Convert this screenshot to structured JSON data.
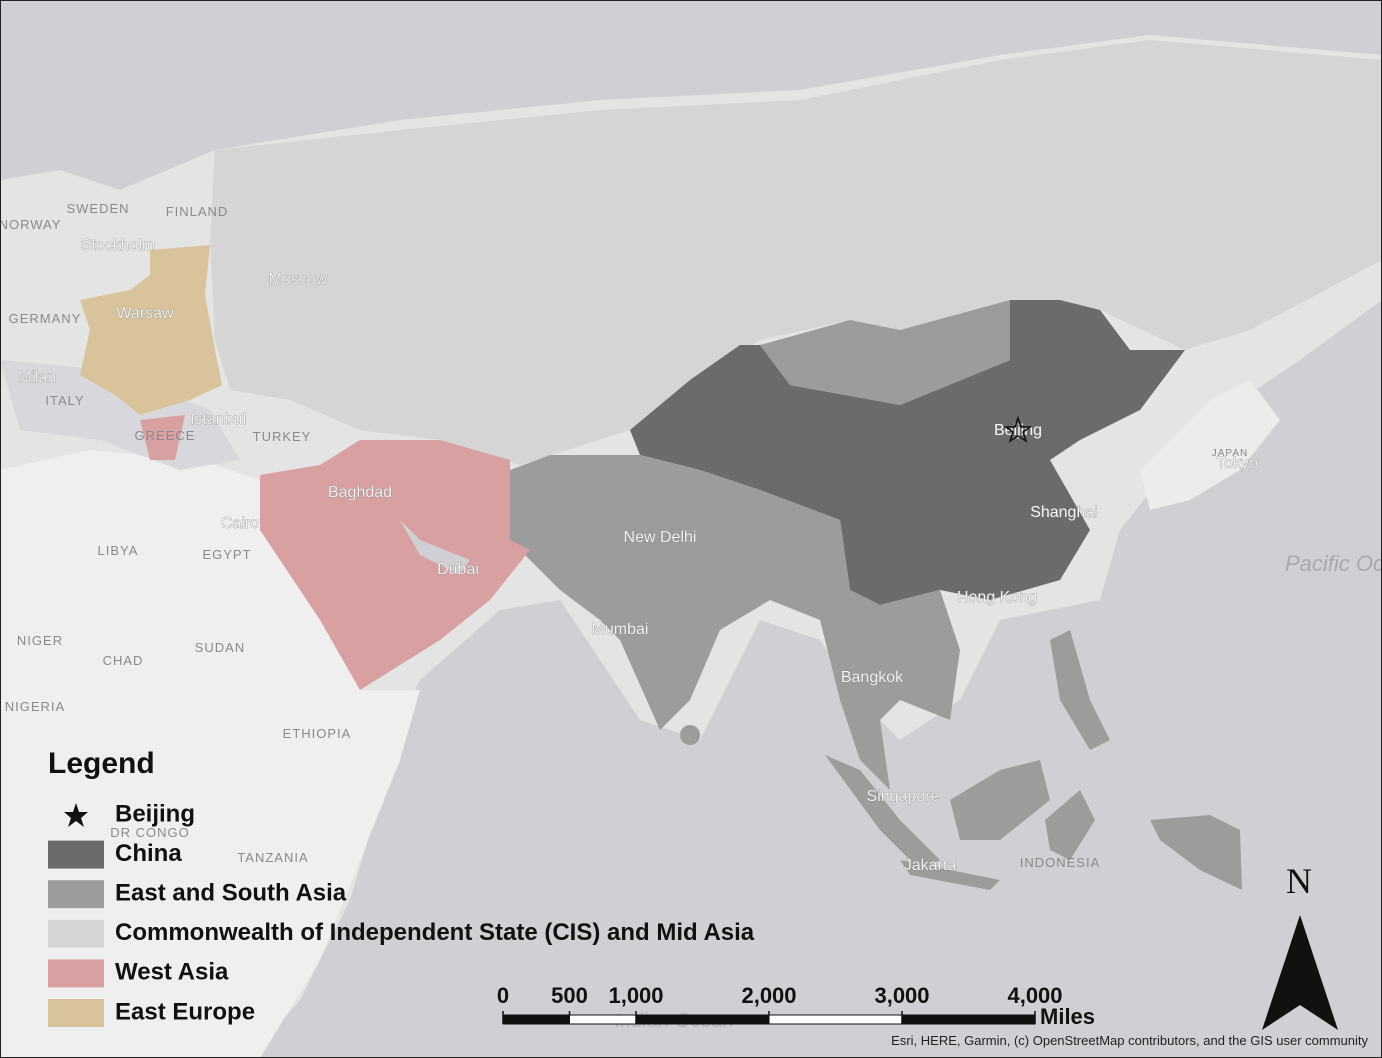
{
  "map": {
    "cities": [
      "Stockholm",
      "Moscow",
      "Warsaw",
      "Milan",
      "Istanbul",
      "Baghdad",
      "Cairo",
      "Dubai",
      "New Delhi",
      "Mumbai",
      "Beijing",
      "Tokyo",
      "Shanghai",
      "Hong Kong",
      "Bangkok",
      "Singapore",
      "Jakarta"
    ],
    "countries": [
      "SWEDEN",
      "FINLAND",
      "NORWAY",
      "GERMANY",
      "ITALY",
      "GREECE",
      "TURKEY",
      "LIBYA",
      "EGYPT",
      "NIGER",
      "CHAD",
      "SUDAN",
      "NIGERIA",
      "ETHIOPIA",
      "DR CONGO",
      "TANZANIA",
      "JAPAN",
      "INDONESIA"
    ],
    "oceans": [
      "Pacific Ocean",
      "Indian Ocean"
    ]
  },
  "legend": {
    "title": "Legend",
    "items": [
      {
        "label": "Beijing"
      },
      {
        "label": "China",
        "color": "#6b6b6b"
      },
      {
        "label": "East and South Asia",
        "color": "#9c9c9c"
      },
      {
        "label": "Commonwealth of Independent State (CIS) and Mid Asia",
        "color": "#d5d5d5"
      },
      {
        "label": "West Asia",
        "color": "#d8a0a0"
      },
      {
        "label": "East Europe",
        "color": "#d8c39a"
      }
    ]
  },
  "scale_bar": {
    "ticks": [
      0,
      500,
      {
        "value": 1000,
        "label": "1,000"
      },
      {
        "value": 2000,
        "label": "2,000"
      },
      {
        "value": 3000,
        "label": "3,000"
      },
      {
        "value": 4000,
        "label": "4,000"
      }
    ],
    "unit": "Miles"
  },
  "north_arrow": "N",
  "attribution": "Esri, HERE, Garmin, (c) OpenStreetMap contributors, and the GIS user community"
}
